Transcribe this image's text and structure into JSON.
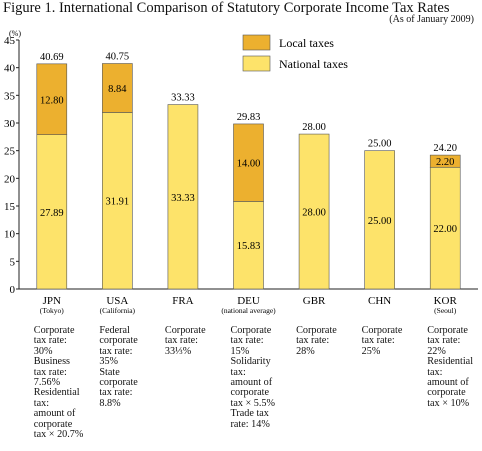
{
  "title": "Figure 1. International Comparison of Statutory Corporate Income Tax Rates",
  "subtitle": "(As of January 2009)",
  "colors": {
    "local": "#ecb02f",
    "national": "#fde36a",
    "outline": "#555555"
  },
  "chart_data": {
    "type": "bar",
    "stacked": true,
    "title": "Figure 1. International Comparison of Statutory Corporate Income Tax Rates",
    "unit": "(%)",
    "ylim": [
      0,
      45
    ],
    "yticks": [
      "0",
      "5",
      "10",
      "15",
      "20",
      "25",
      "30",
      "35",
      "40",
      "45"
    ],
    "legend_position": "top-right",
    "categories": [
      {
        "code": "JPN",
        "sub": "(Tokyo)"
      },
      {
        "code": "USA",
        "sub": "(California)"
      },
      {
        "code": "FRA",
        "sub": ""
      },
      {
        "code": "DEU",
        "sub": "(national average)"
      },
      {
        "code": "GBR",
        "sub": ""
      },
      {
        "code": "CHN",
        "sub": ""
      },
      {
        "code": "KOR",
        "sub": "(Seoul)"
      }
    ],
    "series": [
      {
        "name": "National taxes",
        "values": [
          27.89,
          31.91,
          33.33,
          15.83,
          28.0,
          25.0,
          22.0
        ],
        "labels": [
          "27.89",
          "31.91",
          "33.33",
          "15.83",
          "28.00",
          "25.00",
          "22.00"
        ]
      },
      {
        "name": "Local taxes",
        "values": [
          12.8,
          8.84,
          0,
          14.0,
          0,
          0,
          2.2
        ],
        "labels": [
          "12.80",
          "8.84",
          "",
          "14.00",
          "",
          "",
          "2.20"
        ]
      }
    ],
    "totals": [
      "40.69",
      "40.75",
      "33.33",
      "29.83",
      "28.00",
      "25.00",
      "24.20"
    ],
    "legend": [
      {
        "name": "Local taxes"
      },
      {
        "name": "National taxes"
      }
    ],
    "notes": [
      [
        "Corporate",
        "tax rate:",
        "30%",
        "Business",
        "tax rate:",
        "7.56%",
        "Residential",
        "tax:",
        "amount of",
        "corporate",
        "tax × 20.7%"
      ],
      [
        "Federal",
        "corporate",
        "tax rate:",
        "35%",
        "State",
        "corporate",
        "tax rate:",
        "8.8%"
      ],
      [
        "Corporate",
        "tax rate:",
        "33⅓%"
      ],
      [
        "Corporate",
        "tax rate:",
        "15%",
        "Solidarity",
        "tax:",
        "amount of",
        "corporate",
        "tax × 5.5%",
        "Trade tax",
        "rate: 14%"
      ],
      [
        "Corporate",
        "tax rate:",
        "28%"
      ],
      [
        "Corporate",
        "tax rate:",
        "25%"
      ],
      [
        "Corporate",
        "tax rate:",
        "22%",
        "Residential",
        "tax:",
        "amount of",
        "corporate",
        "tax × 10%"
      ]
    ]
  }
}
